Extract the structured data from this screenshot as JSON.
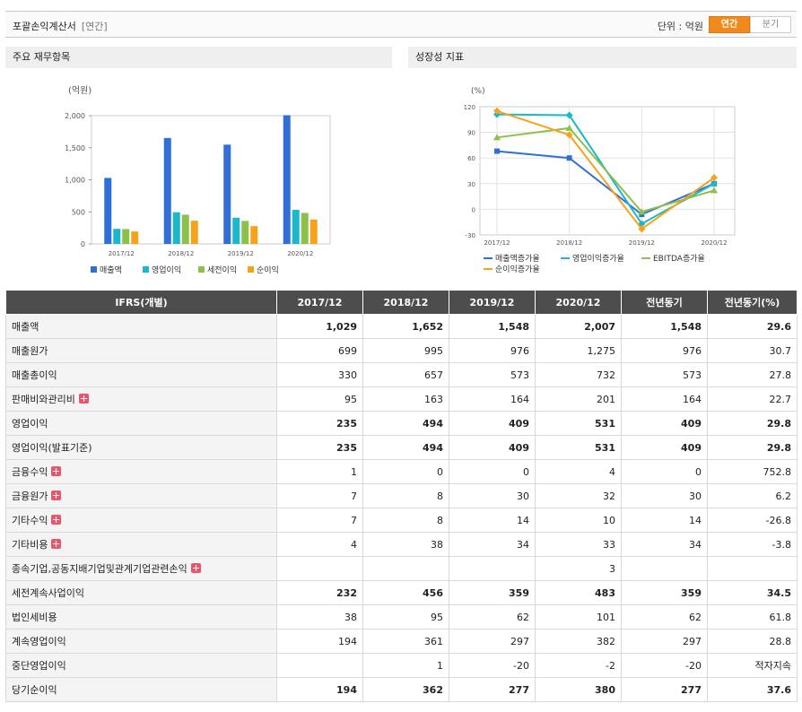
{
  "header": {
    "title": "포괄손익계산서",
    "subtitle": "[연간]",
    "unit": "단위 : 억원",
    "tabs": [
      "연간",
      "분기"
    ],
    "active_tab": "연간"
  },
  "panels": {
    "left_title": "주요 재무항목",
    "right_title": "성장성 지표"
  },
  "colors": {
    "sales": "#2f6fd6",
    "op": "#1ab8c8",
    "pretax": "#8cc04a",
    "net": "#f7a21b",
    "accent": "#f08a1c"
  },
  "chart_data": [
    {
      "type": "bar",
      "ylabel": "(억원)",
      "ylim": [
        0,
        2000
      ],
      "yticks": [
        0,
        500,
        1000,
        1500,
        2000
      ],
      "ytick_labels": [
        "0",
        "500",
        "1,000",
        "1,500",
        "2,000"
      ],
      "categories": [
        "2017/12",
        "2018/12",
        "2019/12",
        "2020/12"
      ],
      "series": [
        {
          "name": "매출액",
          "values": [
            1029,
            1652,
            1548,
            2007
          ]
        },
        {
          "name": "영업이익",
          "values": [
            235,
            494,
            409,
            531
          ]
        },
        {
          "name": "세전이익",
          "values": [
            232,
            456,
            359,
            483
          ]
        },
        {
          "name": "순이익",
          "values": [
            194,
            362,
            277,
            380
          ]
        }
      ],
      "legend": "bottom"
    },
    {
      "type": "line",
      "ylabel": "(%)",
      "ylim": [
        -30,
        120
      ],
      "yticks": [
        -30,
        0,
        30,
        60,
        90,
        120
      ],
      "categories": [
        "2017/12",
        "2018/12",
        "2019/12",
        "2020/12"
      ],
      "series": [
        {
          "name": "매출액증가율",
          "values": [
            68,
            60,
            -6,
            30
          ]
        },
        {
          "name": "영업이익증가율",
          "values": [
            111,
            110,
            -17,
            30
          ]
        },
        {
          "name": "EBITDA증가율",
          "values": [
            84,
            95,
            -3,
            22
          ]
        },
        {
          "name": "순이익증가율",
          "values": [
            115,
            87,
            -23,
            37
          ]
        }
      ],
      "legend": "bottom",
      "grid": true
    }
  ],
  "table": {
    "headers": [
      "IFRS(개별)",
      "2017/12",
      "2018/12",
      "2019/12",
      "2020/12",
      "전년동기",
      "전년동기(%)"
    ],
    "rows": [
      {
        "label": "매출액",
        "bold": true,
        "plus": false,
        "values": [
          "1,029",
          "1,652",
          "1,548",
          "2,007",
          "1,548",
          "29.6"
        ]
      },
      {
        "label": "매출원가",
        "bold": false,
        "plus": false,
        "values": [
          "699",
          "995",
          "976",
          "1,275",
          "976",
          "30.7"
        ]
      },
      {
        "label": "매출총이익",
        "bold": false,
        "plus": false,
        "values": [
          "330",
          "657",
          "573",
          "732",
          "573",
          "27.8"
        ]
      },
      {
        "label": "판매비와관리비",
        "bold": false,
        "plus": true,
        "values": [
          "95",
          "163",
          "164",
          "201",
          "164",
          "22.7"
        ]
      },
      {
        "label": "영업이익",
        "bold": true,
        "plus": false,
        "values": [
          "235",
          "494",
          "409",
          "531",
          "409",
          "29.8"
        ]
      },
      {
        "label": "영업이익(발표기준)",
        "bold": true,
        "plus": false,
        "values": [
          "235",
          "494",
          "409",
          "531",
          "409",
          "29.8"
        ]
      },
      {
        "label": "금융수익",
        "bold": false,
        "plus": true,
        "values": [
          "1",
          "0",
          "0",
          "4",
          "0",
          "752.8"
        ]
      },
      {
        "label": "금융원가",
        "bold": false,
        "plus": true,
        "values": [
          "7",
          "8",
          "30",
          "32",
          "30",
          "6.2"
        ]
      },
      {
        "label": "기타수익",
        "bold": false,
        "plus": true,
        "values": [
          "7",
          "8",
          "14",
          "10",
          "14",
          "-26.8"
        ]
      },
      {
        "label": "기타비용",
        "bold": false,
        "plus": true,
        "values": [
          "4",
          "38",
          "34",
          "33",
          "34",
          "-3.8"
        ]
      },
      {
        "label": "종속기업,공동지배기업및관계기업관련손익",
        "bold": false,
        "plus": true,
        "values": [
          "",
          "",
          "",
          "3",
          "",
          ""
        ]
      },
      {
        "label": "세전계속사업이익",
        "bold": true,
        "plus": false,
        "values": [
          "232",
          "456",
          "359",
          "483",
          "359",
          "34.5"
        ]
      },
      {
        "label": "법인세비용",
        "bold": false,
        "plus": false,
        "values": [
          "38",
          "95",
          "62",
          "101",
          "62",
          "61.8"
        ]
      },
      {
        "label": "계속영업이익",
        "bold": false,
        "plus": false,
        "values": [
          "194",
          "361",
          "297",
          "382",
          "297",
          "28.8"
        ]
      },
      {
        "label": "중단영업이익",
        "bold": false,
        "plus": false,
        "values": [
          "",
          "1",
          "-20",
          "-2",
          "-20",
          "적자지속"
        ]
      },
      {
        "label": "당기순이익",
        "bold": true,
        "plus": false,
        "values": [
          "194",
          "362",
          "277",
          "380",
          "277",
          "37.6"
        ]
      }
    ]
  }
}
